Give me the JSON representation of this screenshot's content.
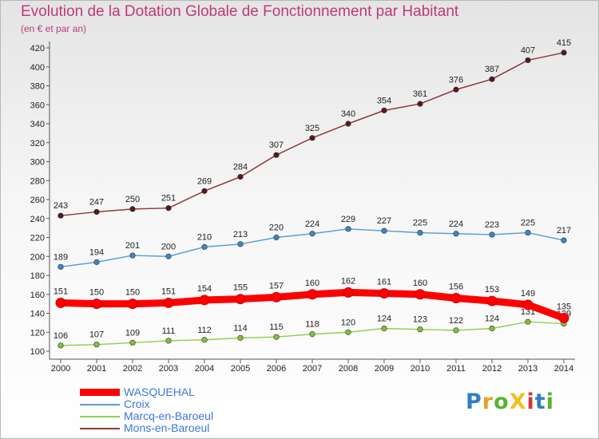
{
  "header": {
    "title": "Evolution de la Dotation Globale de Fonctionnement par Habitant",
    "subtitle": "(en € et par an)"
  },
  "logo": {
    "text": "ProXiti",
    "letter_colors": [
      "#2f7fc1",
      "#e8a02a",
      "#59b230",
      "#f0c020",
      "#d2353a",
      "#2f7fc1",
      "#59b230"
    ]
  },
  "chart_data": {
    "type": "line",
    "title": "Evolution de la Dotation Globale de Fonctionnement par Habitant",
    "subtitle": "(en € et par an)",
    "xlabel": "",
    "ylabel": "",
    "categories": [
      "2000",
      "2001",
      "2002",
      "2003",
      "2004",
      "2005",
      "2006",
      "2007",
      "2008",
      "2009",
      "2010",
      "2011",
      "2012",
      "2013",
      "2014"
    ],
    "ylim": [
      100,
      420
    ],
    "yticks": [
      100,
      120,
      140,
      160,
      180,
      200,
      220,
      240,
      260,
      280,
      300,
      320,
      340,
      360,
      380,
      400,
      420
    ],
    "grid": false,
    "legend_position": "bottom-left",
    "series": [
      {
        "name": "WASQUEHAL",
        "color": "#ff0000",
        "marker": "#ff0000",
        "emphasis": true,
        "values": [
          151,
          150,
          150,
          151,
          154,
          155,
          157,
          160,
          162,
          161,
          160,
          156,
          153,
          149,
          135
        ]
      },
      {
        "name": "Croix",
        "color": "#5b9bd5",
        "marker": "#3f86c8",
        "emphasis": false,
        "values": [
          189,
          194,
          201,
          200,
          210,
          213,
          220,
          224,
          229,
          227,
          225,
          224,
          223,
          225,
          217
        ]
      },
      {
        "name": "Marcq-en-Baroeul",
        "color": "#92d050",
        "marker": "#7ec23a",
        "emphasis": false,
        "values": [
          106,
          107,
          109,
          111,
          112,
          114,
          115,
          118,
          120,
          124,
          123,
          122,
          124,
          131,
          129
        ]
      },
      {
        "name": "Mons-en-Baroeul",
        "color": "#8b3a3a",
        "marker": "#5a1818",
        "emphasis": false,
        "values": [
          243,
          247,
          250,
          251,
          269,
          284,
          307,
          325,
          340,
          354,
          361,
          376,
          387,
          407,
          415
        ]
      }
    ]
  }
}
